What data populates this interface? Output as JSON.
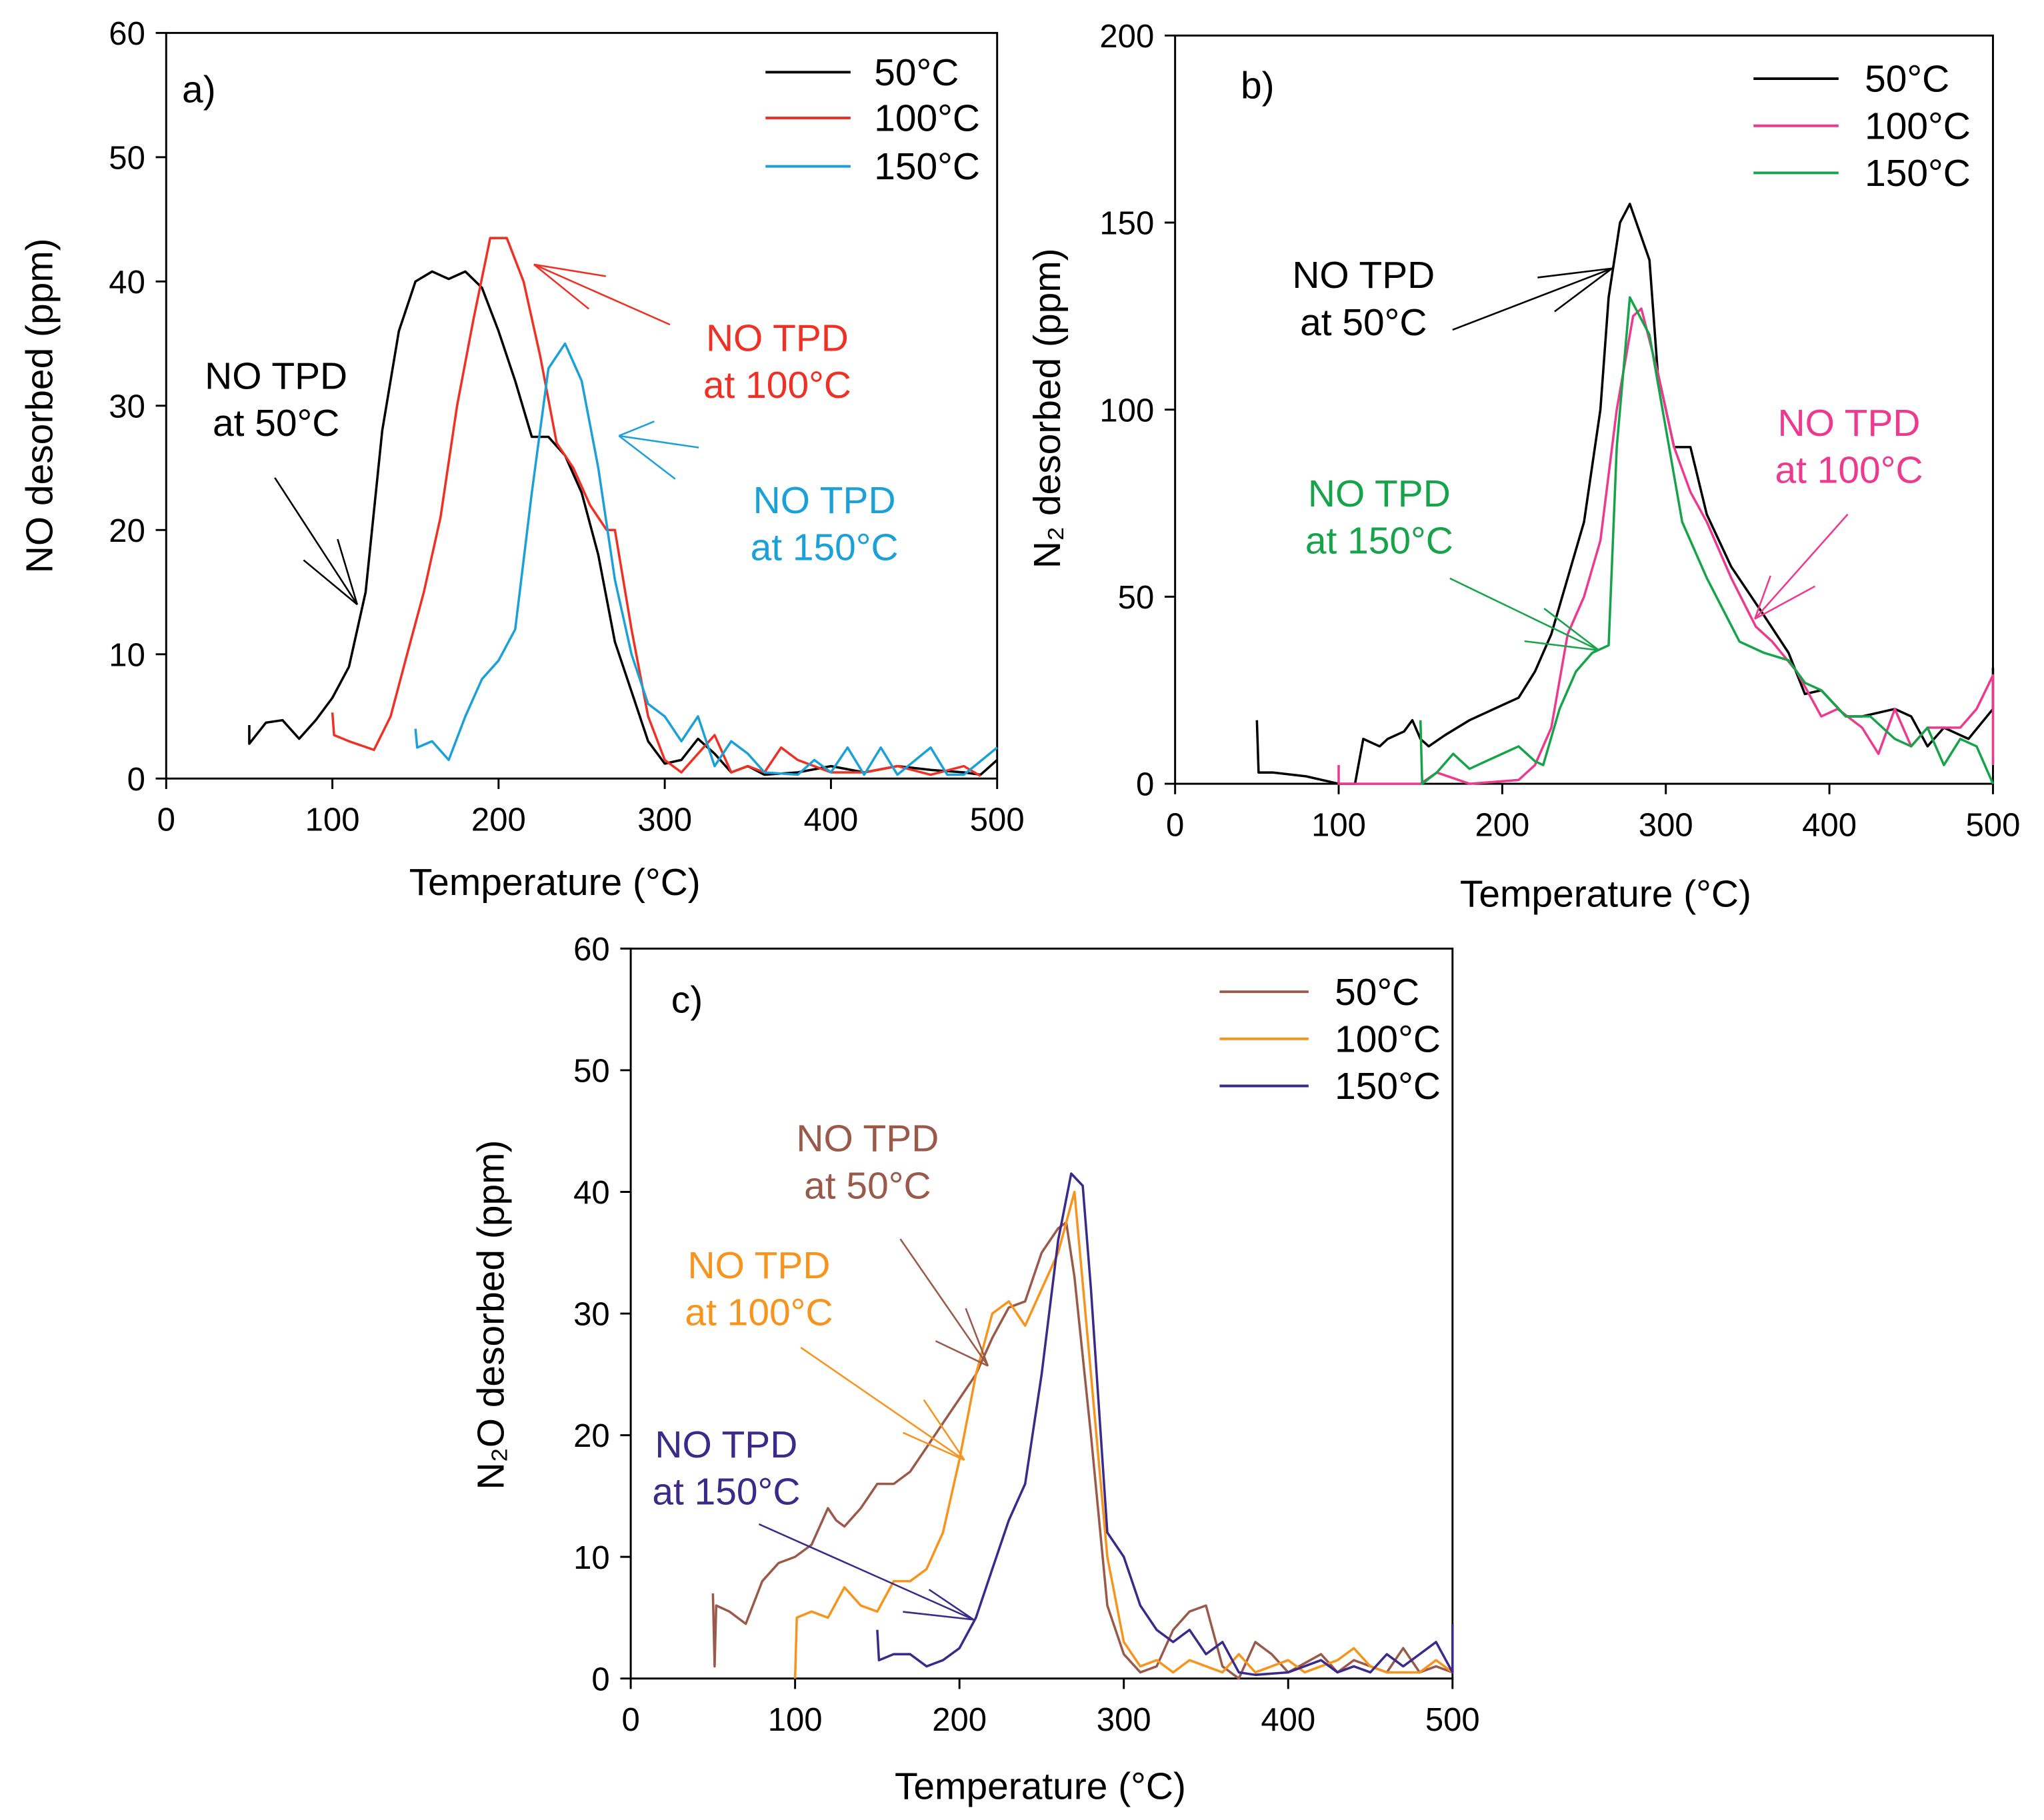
{
  "chart_data": [
    {
      "type": "line",
      "label": "a)",
      "x_label": "Temperature (°C)",
      "y_label": "NO desorbed (ppm)",
      "xlim": [
        0,
        500
      ],
      "ylim": [
        0,
        60
      ],
      "xticks": [
        0,
        100,
        200,
        300,
        400,
        500
      ],
      "yticks": [
        0,
        10,
        20,
        30,
        40,
        50,
        60
      ],
      "series": [
        {
          "name": "50°C",
          "color": "#000000",
          "x": [
            50,
            50,
            60,
            70,
            80,
            90,
            100,
            110,
            120,
            130,
            140,
            150,
            160,
            170,
            180,
            190,
            200,
            210,
            220,
            230,
            240,
            250,
            260,
            270,
            280,
            290,
            300,
            310,
            320,
            330,
            340,
            350,
            360,
            380,
            400,
            420,
            440,
            460,
            480,
            490,
            500
          ],
          "values": [
            4.3,
            2.8,
            4.5,
            4.7,
            3.2,
            4.7,
            6.5,
            9,
            15,
            28,
            36,
            40,
            40.8,
            40.2,
            40.8,
            39.5,
            36,
            32,
            27.5,
            27.5,
            26,
            23,
            18,
            11,
            7,
            3,
            1.2,
            1.5,
            3.2,
            2,
            0.5,
            1,
            0.3,
            0.5,
            1,
            0.5,
            1,
            0.7,
            0.5,
            0.3,
            1.5
          ]
        },
        {
          "name": "100°C",
          "color": "#ee3124",
          "x": [
            100,
            101,
            110,
            125,
            135,
            145,
            155,
            165,
            175,
            185,
            195,
            205,
            215,
            225,
            235,
            245,
            255,
            265,
            270,
            280,
            290,
            300,
            310,
            320,
            330,
            340,
            350,
            360,
            370,
            380,
            400,
            420,
            440,
            460,
            480,
            490
          ],
          "values": [
            5.3,
            3.5,
            3,
            2.3,
            5,
            10,
            15,
            21,
            30,
            37,
            43.5,
            43.5,
            40,
            34,
            27,
            25,
            22,
            20,
            20,
            12,
            5,
            1.5,
            0.5,
            2,
            3.5,
            0.5,
            1,
            0.5,
            2.5,
            1.5,
            0.5,
            0.5,
            1,
            0.3,
            1,
            0.2
          ]
        },
        {
          "name": "150°C",
          "color": "#1ba1d8",
          "x": [
            150,
            151,
            160,
            170,
            180,
            190,
            200,
            210,
            220,
            230,
            240,
            250,
            260,
            270,
            280,
            290,
            300,
            310,
            320,
            330,
            340,
            350,
            360,
            380,
            390,
            400,
            410,
            420,
            430,
            440,
            460,
            470,
            480,
            500
          ],
          "values": [
            4,
            2.5,
            3,
            1.5,
            5,
            8,
            9.5,
            12,
            23,
            33,
            35,
            32,
            25,
            16,
            10,
            6,
            5,
            3,
            5,
            1,
            3,
            2,
            0.5,
            0.3,
            1.5,
            0.5,
            2.5,
            0.3,
            2.5,
            0.3,
            2.5,
            0.3,
            0.3,
            2.5
          ]
        }
      ],
      "annotations": [
        {
          "lines": [
            "NO TPD",
            "at 50°C"
          ],
          "color": "#000000"
        },
        {
          "lines": [
            "NO TPD",
            "at 100°C"
          ],
          "color": "#ee3124"
        },
        {
          "lines": [
            "NO TPD",
            "at 150°C"
          ],
          "color": "#1ba1d8"
        }
      ]
    },
    {
      "type": "line",
      "label": "b)",
      "x_label": "Temperature (°C)",
      "y_label": "N₂ desorbed (ppm)",
      "xlim": [
        0,
        500
      ],
      "ylim": [
        0,
        200
      ],
      "xticks": [
        0,
        100,
        200,
        300,
        400,
        500
      ],
      "yticks": [
        0,
        50,
        100,
        150,
        200
      ],
      "series": [
        {
          "name": "50°C",
          "color": "#000000",
          "x": [
            50,
            51,
            60,
            80,
            100,
            110,
            115,
            125,
            130,
            140,
            145,
            150,
            155,
            165,
            180,
            200,
            210,
            220,
            230,
            240,
            250,
            260,
            265,
            272,
            278,
            290,
            295,
            305,
            315,
            325,
            340,
            360,
            375,
            385,
            395,
            410,
            420,
            440,
            450,
            460,
            470,
            485,
            500,
            500
          ],
          "values": [
            17,
            3,
            3,
            2,
            0,
            0,
            12,
            10,
            12,
            14,
            17,
            12,
            10,
            13,
            17,
            21,
            23,
            30,
            40,
            55,
            70,
            100,
            130,
            150,
            155,
            140,
            110,
            90,
            90,
            72,
            58,
            45,
            35,
            24,
            25,
            18,
            18,
            20,
            18,
            10,
            15,
            12,
            20,
            31
          ]
        },
        {
          "name": "100°C",
          "color": "#ec3a8e",
          "x": [
            100,
            100,
            150,
            160,
            180,
            210,
            220,
            230,
            240,
            250,
            260,
            270,
            280,
            285,
            295,
            305,
            315,
            325,
            340,
            355,
            365,
            380,
            395,
            405,
            420,
            430,
            440,
            450,
            460,
            480,
            490,
            500,
            500
          ],
          "values": [
            5,
            0,
            0,
            3,
            0,
            1,
            5,
            15,
            40,
            50,
            65,
            100,
            125,
            127,
            110,
            90,
            78,
            70,
            55,
            42,
            38,
            30,
            18,
            20,
            15,
            8,
            20,
            10,
            15,
            15,
            20,
            29,
            5
          ]
        },
        {
          "name": "150°C",
          "color": "#17a34a",
          "x": [
            150,
            151,
            160,
            170,
            180,
            190,
            200,
            210,
            220,
            225,
            235,
            245,
            255,
            265,
            270,
            278,
            290,
            300,
            310,
            325,
            345,
            360,
            375,
            385,
            395,
            410,
            425,
            440,
            450,
            460,
            470,
            480,
            490,
            500
          ],
          "values": [
            17,
            0,
            3,
            8,
            4,
            6,
            8,
            10,
            6,
            5,
            20,
            30,
            35,
            37,
            90,
            130,
            120,
            95,
            70,
            55,
            38,
            35,
            33,
            27,
            25,
            18,
            18,
            12,
            10,
            15,
            5,
            12,
            10,
            0
          ]
        }
      ],
      "annotations": [
        {
          "lines": [
            "NO TPD",
            "at 50°C"
          ],
          "color": "#000000"
        },
        {
          "lines": [
            "NO TPD",
            "at 100°C"
          ],
          "color": "#ec3a8e"
        },
        {
          "lines": [
            "NO TPD",
            "at 150°C"
          ],
          "color": "#17a34a"
        }
      ]
    },
    {
      "type": "line",
      "label": "c)",
      "x_label": "Temperature (°C)",
      "y_label": "N₂O desorbed (ppm)",
      "xlim": [
        0,
        500
      ],
      "ylim": [
        0,
        60
      ],
      "xticks": [
        0,
        100,
        200,
        300,
        400,
        500
      ],
      "yticks": [
        0,
        10,
        20,
        30,
        40,
        50,
        60
      ],
      "series": [
        {
          "name": "50°C",
          "color": "#9a5a4a",
          "x": [
            50,
            51,
            52,
            60,
            70,
            80,
            90,
            100,
            110,
            120,
            125,
            130,
            140,
            150,
            160,
            170,
            180,
            190,
            200,
            210,
            220,
            230,
            240,
            250,
            260,
            265,
            270,
            280,
            290,
            300,
            310,
            320,
            330,
            340,
            350,
            360,
            370,
            380,
            390,
            400,
            420,
            430,
            440,
            460,
            470,
            480,
            490,
            500
          ],
          "values": [
            7,
            1,
            6,
            5.5,
            4.5,
            8,
            9.5,
            10,
            11,
            14,
            13,
            12.5,
            14,
            16,
            16,
            17,
            19,
            21,
            23,
            25,
            28,
            30.5,
            31,
            35,
            37,
            37.5,
            33,
            20,
            6,
            2,
            0.5,
            1,
            4,
            5.5,
            6,
            1,
            0,
            3,
            2,
            0.5,
            2,
            0.5,
            1.5,
            0.5,
            2.5,
            0.5,
            1,
            0.5
          ]
        },
        {
          "name": "100°C",
          "color": "#f7941d",
          "x": [
            100,
            101,
            110,
            120,
            130,
            140,
            150,
            160,
            170,
            180,
            190,
            200,
            210,
            220,
            230,
            240,
            250,
            260,
            270,
            280,
            290,
            300,
            310,
            320,
            330,
            340,
            360,
            370,
            380,
            400,
            410,
            430,
            440,
            450,
            460,
            480,
            490,
            500
          ],
          "values": [
            0,
            5,
            5.5,
            5,
            7.5,
            6,
            5.5,
            8,
            8,
            9,
            12,
            18,
            25,
            30,
            31,
            29,
            32,
            35,
            40,
            25,
            10,
            3,
            1,
            1.5,
            0.5,
            1.5,
            0.5,
            2,
            0.5,
            1.5,
            0.5,
            1.5,
            2.5,
            1,
            0.5,
            0.5,
            1.5,
            0.5
          ]
        },
        {
          "name": "150°C",
          "color": "#3b2a8a",
          "x": [
            150,
            151,
            160,
            170,
            180,
            190,
            200,
            210,
            220,
            230,
            240,
            250,
            260,
            268,
            275,
            280,
            290,
            300,
            310,
            320,
            330,
            340,
            350,
            360,
            370,
            380,
            400,
            420,
            430,
            440,
            450,
            460,
            470,
            480,
            490,
            500,
            500
          ],
          "values": [
            4,
            1.5,
            2,
            2,
            1,
            1.5,
            2.5,
            5,
            9,
            13,
            16,
            25,
            36,
            41.5,
            40.5,
            32,
            12,
            10,
            6,
            4,
            3,
            4,
            2,
            3,
            0.5,
            0.3,
            0.5,
            1.5,
            0.5,
            1,
            0.5,
            2,
            1,
            2,
            3,
            0.5,
            4.5
          ]
        }
      ],
      "annotations": [
        {
          "lines": [
            "NO TPD",
            "at 50°C"
          ],
          "color": "#9a5a4a"
        },
        {
          "lines": [
            "NO TPD",
            "at 100°C"
          ],
          "color": "#f7941d"
        },
        {
          "lines": [
            "NO TPD",
            "at 150°C"
          ],
          "color": "#3b2a8a"
        }
      ]
    }
  ]
}
